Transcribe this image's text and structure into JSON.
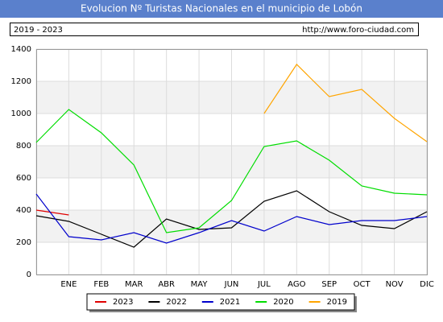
{
  "chart_data": {
    "type": "line",
    "title": "Evolucion Nº Turistas Nacionales en el municipio de Lobón",
    "subtitle": "2019 - 2023",
    "source": "http://www.foro-ciudad.com",
    "categories": [
      null,
      "ENE",
      "FEB",
      "MAR",
      "ABR",
      "MAY",
      "JUN",
      "JUL",
      "AGO",
      "SEP",
      "OCT",
      "NOV",
      "DIC"
    ],
    "series": [
      {
        "name": "2023",
        "color": "#e00000",
        "values": [
          400,
          370,
          null,
          null,
          null,
          null,
          null,
          null,
          null,
          null,
          null,
          null,
          null
        ]
      },
      {
        "name": "2022",
        "color": "#000000",
        "values": [
          365,
          330,
          250,
          170,
          345,
          280,
          290,
          455,
          520,
          390,
          305,
          285,
          390
        ]
      },
      {
        "name": "2021",
        "color": "#0000cc",
        "values": [
          500,
          235,
          215,
          260,
          195,
          260,
          335,
          270,
          360,
          310,
          335,
          335,
          360
        ]
      },
      {
        "name": "2020",
        "color": "#00dd00",
        "values": [
          820,
          1025,
          880,
          680,
          260,
          290,
          460,
          795,
          830,
          710,
          550,
          505,
          495
        ]
      },
      {
        "name": "2019",
        "color": "#ffa500",
        "values": [
          null,
          null,
          null,
          null,
          null,
          null,
          null,
          1000,
          1305,
          1105,
          1150,
          970,
          825
        ]
      }
    ],
    "ylim": [
      0,
      1400
    ],
    "yticks": [
      0,
      200,
      400,
      600,
      800,
      1000,
      1200,
      1400
    ],
    "grid": true
  }
}
